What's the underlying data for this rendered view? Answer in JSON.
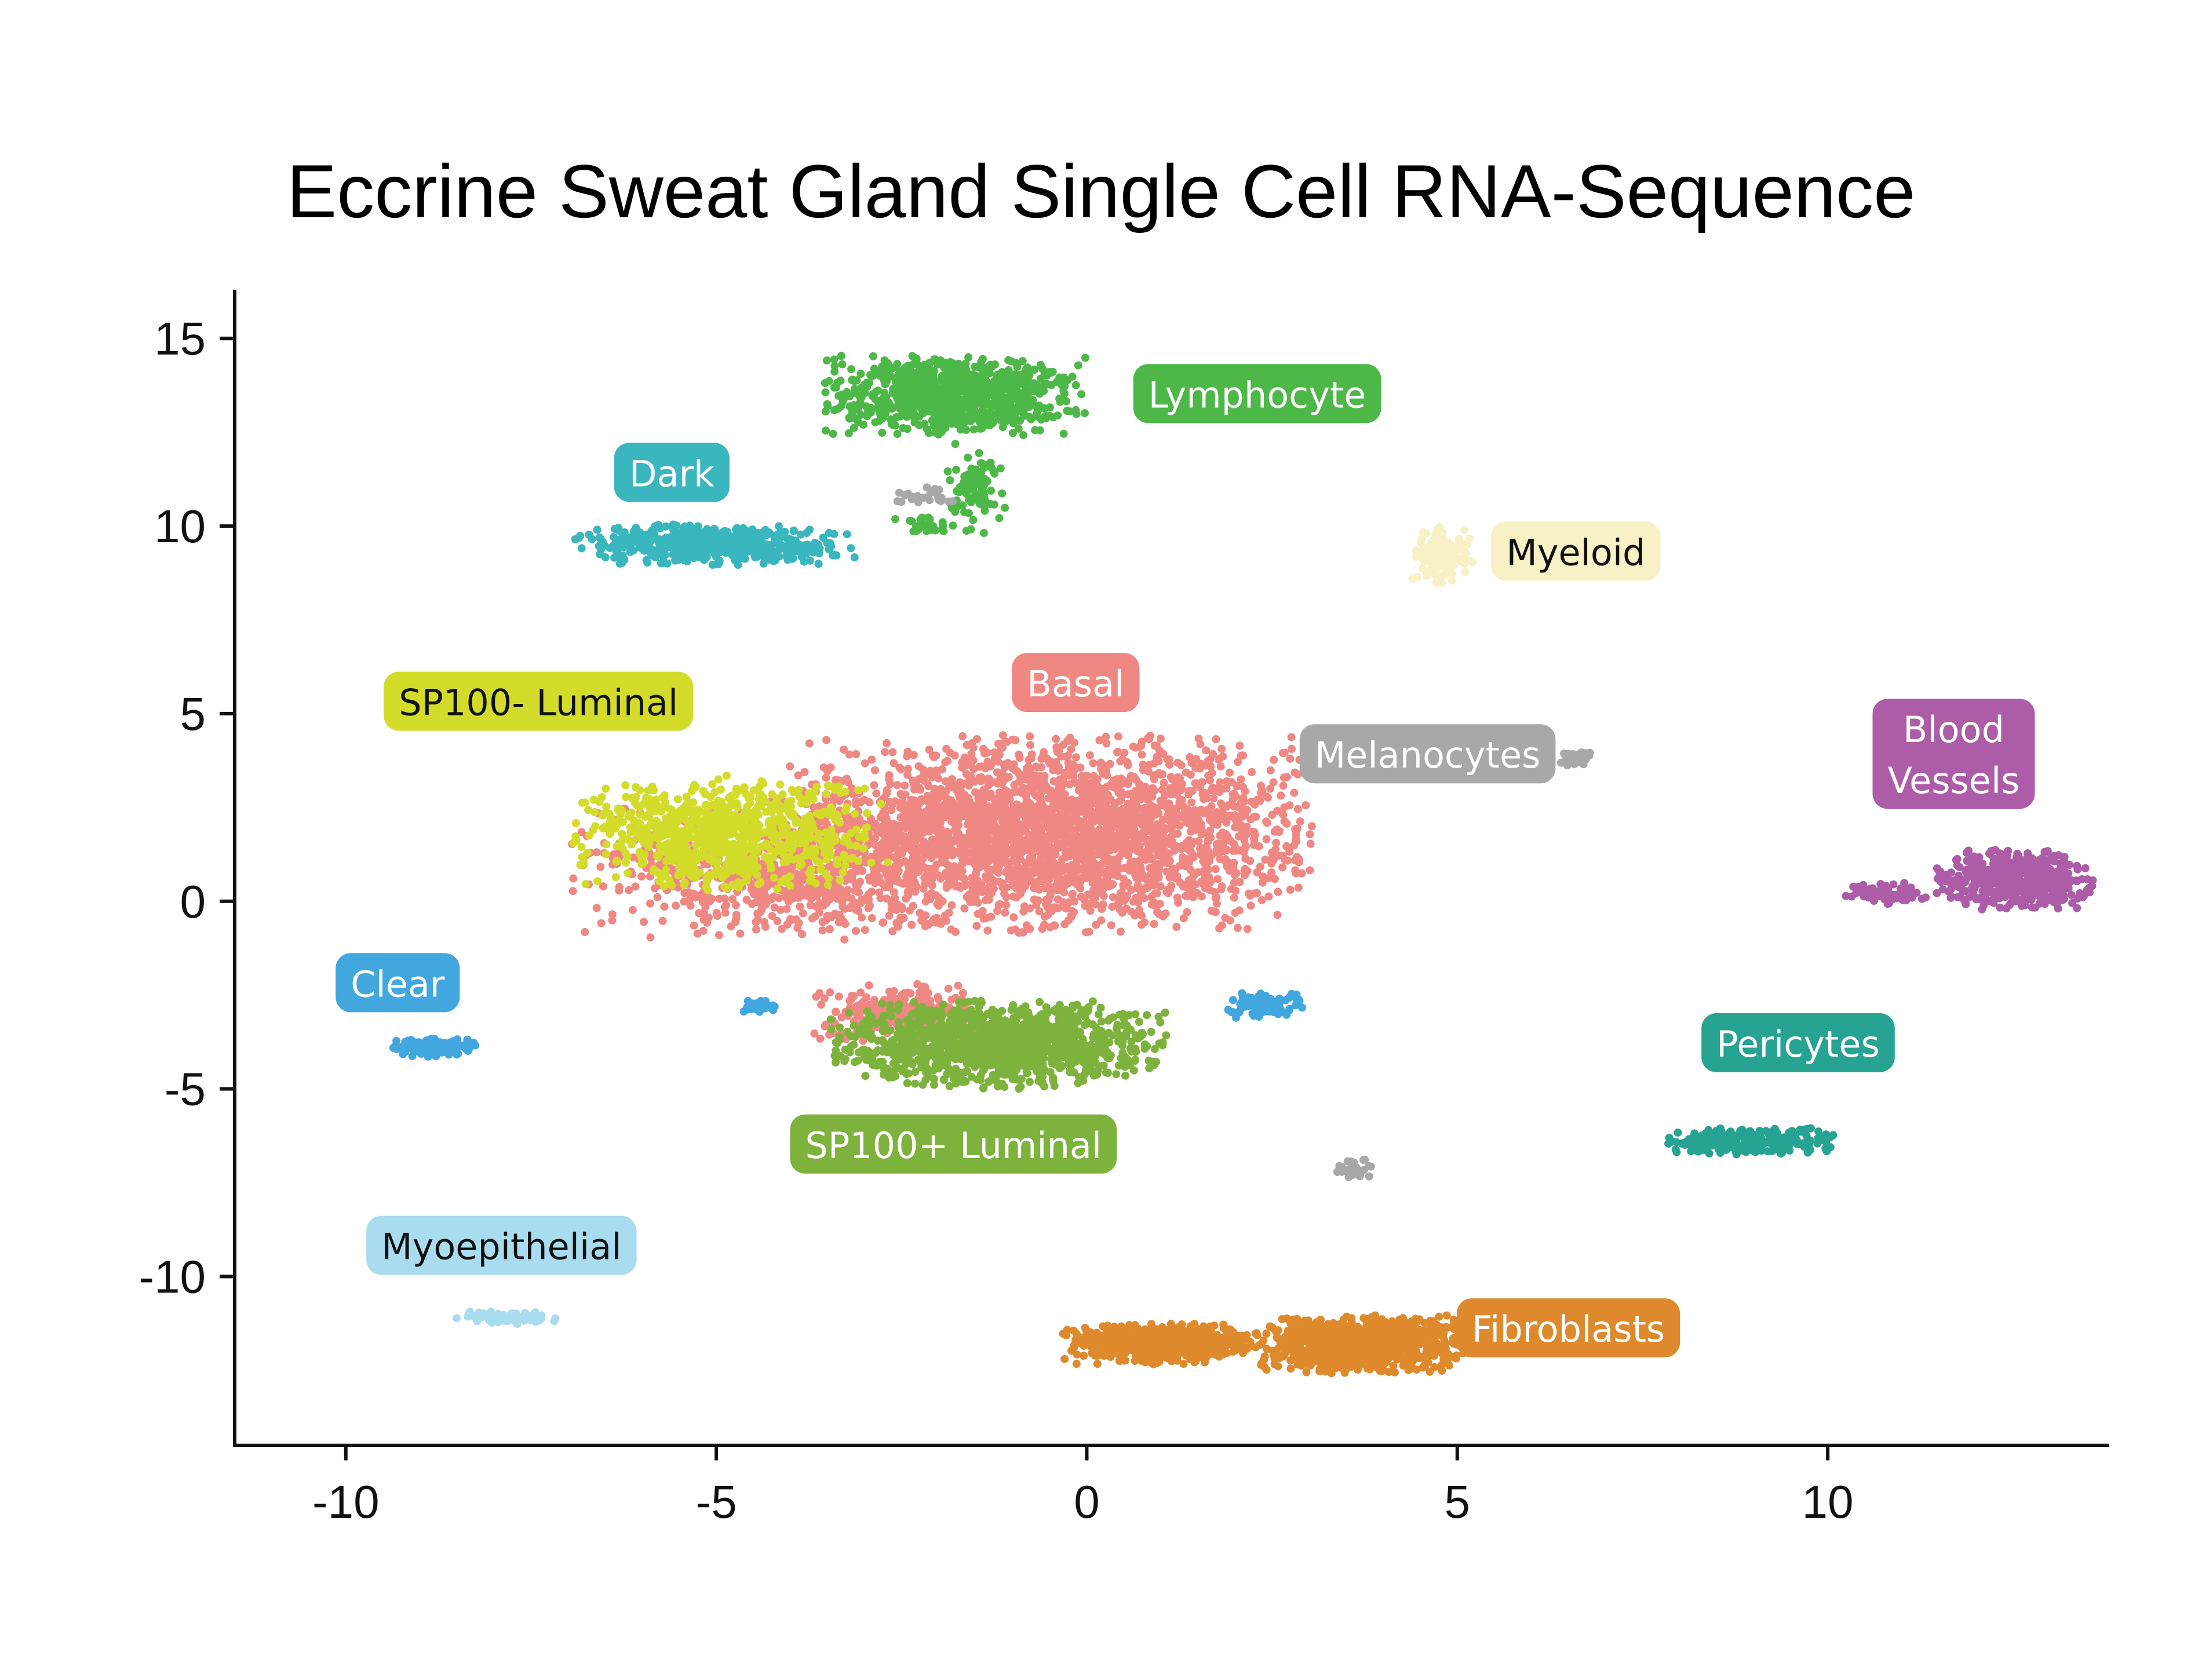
{
  "chart_data": {
    "type": "scatter",
    "title": "Eccrine Sweat Gland Single Cell RNA-Sequence",
    "xlabel": "",
    "ylabel": "",
    "xlim": [
      -11.5,
      13.8
    ],
    "ylim": [
      -14.5,
      16.3
    ],
    "x_ticks": [
      -10,
      -5,
      0,
      5,
      10
    ],
    "y_ticks": [
      15,
      10,
      5,
      0,
      -5,
      -10
    ],
    "x_tick_labels": [
      "-10",
      "-5",
      "0",
      "5",
      "10"
    ],
    "y_tick_labels": [
      "15",
      "10",
      "5",
      "0",
      "-5",
      "-10"
    ],
    "grid": false,
    "legend": "none (labels placed beside clusters)",
    "series": [
      {
        "name": "Lymphocyte",
        "color": "#4db847",
        "text_color": "#ffffff",
        "label_lines": [
          "Lymphocyte"
        ],
        "label_at": [
          2.3,
          13.5
        ],
        "clusters": [
          {
            "center": [
              -1.8,
              13.5
            ],
            "spread": [
              1.5,
              0.9
            ],
            "count": 900
          },
          {
            "center": [
              -1.5,
              11.0
            ],
            "spread": [
              0.35,
              1.0
            ],
            "count": 90
          },
          {
            "center": [
              -2.2,
              10.0
            ],
            "spread": [
              0.35,
              0.3
            ],
            "count": 25
          }
        ]
      },
      {
        "name": "Dark",
        "color": "#39b6be",
        "text_color": "#ffffff",
        "label_lines": [
          "Dark"
        ],
        "label_at": [
          -5.6,
          11.4
        ],
        "clusters": [
          {
            "center": [
              -5.0,
              9.5
            ],
            "spread": [
              1.6,
              0.45
            ],
            "count": 520
          }
        ]
      },
      {
        "name": "Myeloid",
        "color": "#f9f1c6",
        "text_color": "#111111",
        "label_lines": [
          "Myeloid"
        ],
        "label_at": [
          6.6,
          9.3
        ],
        "clusters": [
          {
            "center": [
              4.8,
              9.3
            ],
            "spread": [
              0.35,
              0.7
            ],
            "count": 140
          }
        ]
      },
      {
        "name": "Basal",
        "color": "#ef8783",
        "text_color": "#ffffff",
        "label_lines": [
          "Basal"
        ],
        "label_at": [
          -0.15,
          5.8
        ],
        "clusters": [
          {
            "center": [
              -0.5,
              1.8
            ],
            "spread": [
              3.0,
              2.2
            ],
            "count": 2800
          },
          {
            "center": [
              -4.2,
              0.8
            ],
            "spread": [
              2.3,
              1.6
            ],
            "count": 700
          },
          {
            "center": [
              -2.5,
              -3.0
            ],
            "spread": [
              1.0,
              0.7
            ],
            "count": 250
          }
        ]
      },
      {
        "name": "SP100- Luminal",
        "color": "#d3dc2a",
        "text_color": "#111111",
        "label_lines": [
          "SP100- Luminal"
        ],
        "label_at": [
          -7.4,
          5.3
        ],
        "clusters": [
          {
            "center": [
              -4.8,
              1.8
            ],
            "spread": [
              1.8,
              1.3
            ],
            "count": 850
          }
        ]
      },
      {
        "name": "Melanocytes",
        "color": "#a8a8ab",
        "text_color": "#ffffff",
        "label_lines": [
          "Melanocytes"
        ],
        "label_at": [
          4.6,
          3.9
        ],
        "clusters": [
          {
            "center": [
              6.6,
              3.8
            ],
            "spread": [
              0.18,
              0.15
            ],
            "count": 40
          },
          {
            "center": [
              3.6,
              -7.1
            ],
            "spread": [
              0.25,
              0.25
            ],
            "count": 30
          },
          {
            "center": [
              -2.2,
              10.8
            ],
            "spread": [
              0.4,
              0.25
            ],
            "count": 25
          }
        ]
      },
      {
        "name": "Blood Vessels",
        "color": "#ad5ca8",
        "text_color": "#ffffff",
        "label_lines": [
          "Blood",
          "Vessels"
        ],
        "label_at": [
          11.7,
          3.9
        ],
        "clusters": [
          {
            "center": [
              12.5,
              0.6
            ],
            "spread": [
              0.9,
              0.7
            ],
            "count": 450
          },
          {
            "center": [
              10.8,
              0.2
            ],
            "spread": [
              0.5,
              0.25
            ],
            "count": 80
          }
        ]
      },
      {
        "name": "Clear",
        "color": "#41a7de",
        "text_color": "#ffffff",
        "label_lines": [
          "Clear"
        ],
        "label_at": [
          -9.3,
          -2.2
        ],
        "clusters": [
          {
            "center": [
              -8.8,
              -3.9
            ],
            "spread": [
              0.5,
              0.2
            ],
            "count": 150
          },
          {
            "center": [
              2.4,
              -2.8
            ],
            "spread": [
              0.45,
              0.3
            ],
            "count": 90
          },
          {
            "center": [
              -4.4,
              -2.8
            ],
            "spread": [
              0.2,
              0.15
            ],
            "count": 25
          }
        ]
      },
      {
        "name": "SP100+ Luminal",
        "color": "#7db23c",
        "text_color": "#ffffff",
        "label_lines": [
          "SP100+ Luminal"
        ],
        "label_at": [
          -1.8,
          -6.5
        ],
        "clusters": [
          {
            "center": [
              -1.2,
              -3.8
            ],
            "spread": [
              1.9,
              1.0
            ],
            "count": 1200
          }
        ]
      },
      {
        "name": "Pericytes",
        "color": "#26a393",
        "text_color": "#ffffff",
        "label_lines": [
          "Pericytes"
        ],
        "label_at": [
          9.6,
          -3.8
        ],
        "clusters": [
          {
            "center": [
              9.0,
              -6.4
            ],
            "spread": [
              1.0,
              0.3
            ],
            "count": 280
          }
        ]
      },
      {
        "name": "Myoepithelial",
        "color": "#aadcef",
        "text_color": "#111111",
        "label_lines": [
          "Myoepithelial"
        ],
        "label_at": [
          -7.9,
          -9.2
        ],
        "clusters": [
          {
            "center": [
              -7.8,
              -11.1
            ],
            "spread": [
              0.6,
              0.15
            ],
            "count": 80
          }
        ]
      },
      {
        "name": "Fibroblasts",
        "color": "#de8a2c",
        "text_color": "#ffffff",
        "label_lines": [
          "Fibroblasts"
        ],
        "label_at": [
          6.5,
          -11.4
        ],
        "clusters": [
          {
            "center": [
              3.7,
              -11.8
            ],
            "spread": [
              1.2,
              0.65
            ],
            "count": 900
          },
          {
            "center": [
              1.0,
              -11.8
            ],
            "spread": [
              1.1,
              0.45
            ],
            "count": 700
          }
        ]
      }
    ]
  }
}
